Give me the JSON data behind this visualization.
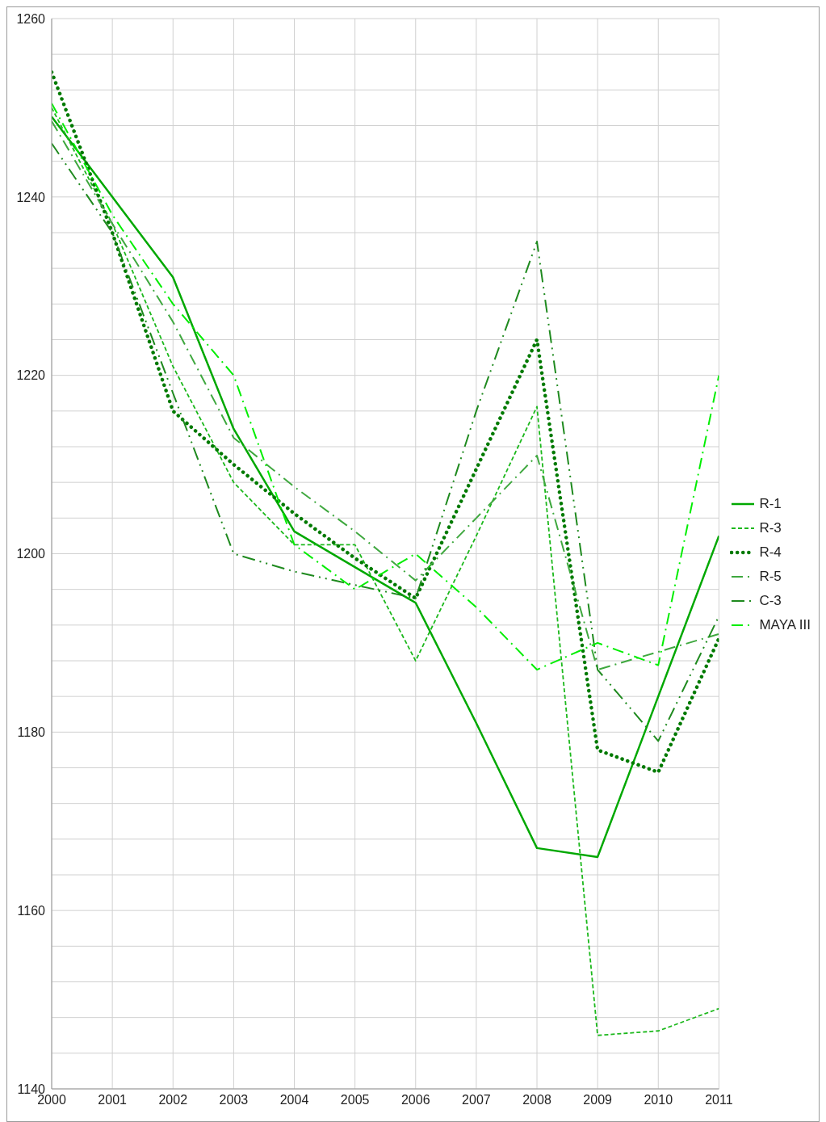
{
  "chart_data": {
    "type": "line",
    "x": [
      2000,
      2001,
      2002,
      2003,
      2004,
      2005,
      2006,
      2007,
      2008,
      2009,
      2010,
      2011
    ],
    "xlim": [
      2000,
      2011
    ],
    "xticks": [
      2000,
      2001,
      2002,
      2003,
      2004,
      2005,
      2006,
      2007,
      2008,
      2009,
      2010,
      2011
    ],
    "ylim": [
      1140,
      1260
    ],
    "yticks": [
      1140,
      {
        "value": 1144,
        "label": null
      },
      {
        "value": 1148,
        "label": null
      },
      {
        "value": 1152,
        "label": null
      },
      {
        "value": 1156,
        "label": null
      },
      1160,
      {
        "value": 1164,
        "label": null
      },
      {
        "value": 1168,
        "label": null
      },
      {
        "value": 1172,
        "label": null
      },
      {
        "value": 1176,
        "label": null
      },
      1180,
      {
        "value": 1184,
        "label": null
      },
      {
        "value": 1188,
        "label": null
      },
      {
        "value": 1192,
        "label": null
      },
      {
        "value": 1196,
        "label": null
      },
      1200,
      {
        "value": 1204,
        "label": null
      },
      {
        "value": 1208,
        "label": null
      },
      {
        "value": 1212,
        "label": null
      },
      {
        "value": 1216,
        "label": null
      },
      1220,
      {
        "value": 1224,
        "label": null
      },
      {
        "value": 1228,
        "label": null
      },
      {
        "value": 1232,
        "label": null
      },
      {
        "value": 1236,
        "label": null
      },
      1240,
      {
        "value": 1244,
        "label": null
      },
      {
        "value": 1248,
        "label": null
      },
      {
        "value": 1252,
        "label": null
      },
      {
        "value": 1256,
        "label": null
      },
      1260
    ],
    "grid": true,
    "legend": "right",
    "marker": "none",
    "series": [
      {
        "name": "R-1",
        "color": "#00a800",
        "line_style": "solid",
        "values": [
          1249,
          1240,
          1231,
          1214,
          1202.5,
          1198.5,
          1194.5,
          1181,
          1167,
          1166,
          1184,
          1202
        ]
      },
      {
        "name": "R-3",
        "color": "#1cb81c",
        "line_style": "dashed",
        "values": [
          1250,
          1237,
          1221,
          1208,
          1201,
          1201,
          1188,
          1202,
          1216.5,
          1146,
          1146.5,
          1149
        ]
      },
      {
        "name": "R-4",
        "color": "#007a00",
        "line_style": "dotted",
        "values": [
          1254,
          1236,
          1216,
          1210,
          1204.5,
          1199.5,
          1195,
          1209.5,
          1224,
          1178,
          1175.5,
          1190.5
        ]
      },
      {
        "name": "R-5",
        "color": "#3fa83f",
        "line_style": "dashdot",
        "values": [
          1248.5,
          1237,
          1226,
          1213,
          1207.5,
          1202.5,
          1197,
          1204,
          1211,
          1187,
          1189,
          1191
        ]
      },
      {
        "name": "C-3",
        "color": "#1f8a1f",
        "line_style": "dashdotdot",
        "values": [
          1246,
          1236,
          1218,
          1200,
          1198,
          1196.5,
          1195,
          1216,
          1235,
          1187,
          1179,
          1193
        ]
      },
      {
        "name": "MAYA III",
        "color": "#00ee00",
        "line_style": "dashdot",
        "values": [
          1250.5,
          1238,
          1228,
          1220,
          1201,
          1196,
          1200,
          1194,
          1187,
          1190,
          1187.5,
          1220
        ]
      }
    ]
  }
}
